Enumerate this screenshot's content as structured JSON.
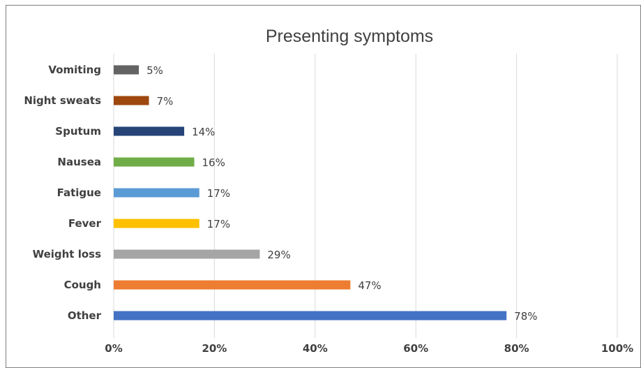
{
  "chart_data": {
    "type": "bar",
    "orientation": "horizontal",
    "title": "Presenting symptoms",
    "xlabel": "",
    "ylabel": "",
    "xlim": [
      0,
      100
    ],
    "x_ticks": [
      "0%",
      "20%",
      "40%",
      "60%",
      "80%",
      "100%"
    ],
    "x_tick_values": [
      0,
      20,
      40,
      60,
      80,
      100
    ],
    "grid": true,
    "legend": "none",
    "categories": [
      "Vomiting",
      "Night sweats",
      "Sputum",
      "Nausea",
      "Fatigue",
      "Fever",
      "Weight loss",
      "Cough",
      "Other"
    ],
    "values": [
      5,
      7,
      14,
      16,
      17,
      17,
      29,
      47,
      78
    ],
    "data_labels": [
      "5%",
      "7%",
      "14%",
      "16%",
      "17%",
      "17%",
      "29%",
      "47%",
      "78%"
    ],
    "colors": [
      "#636363",
      "#9e480e",
      "#264478",
      "#70ad47",
      "#5b9bd5",
      "#ffc000",
      "#a5a5a5",
      "#ed7d31",
      "#4472c4"
    ]
  }
}
